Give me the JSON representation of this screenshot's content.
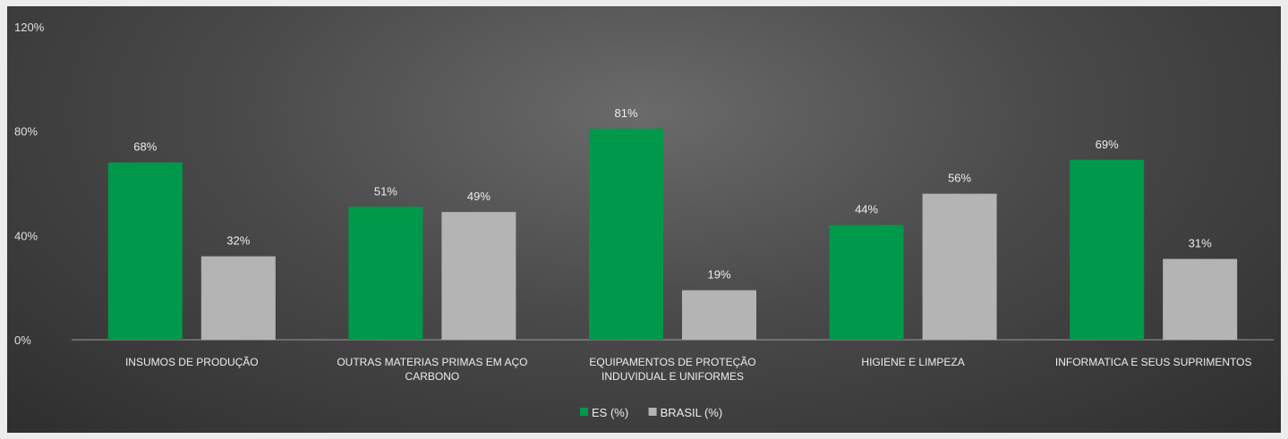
{
  "chart_data": {
    "type": "bar",
    "categories": [
      [
        "INSUMOS DE PRODUÇÃO"
      ],
      [
        "OUTRAS MATERIAS PRIMAS EM AÇO",
        "CARBONO"
      ],
      [
        "EQUIPAMENTOS DE PROTEÇÃO",
        "INDUVIDUAL E UNIFORMES"
      ],
      [
        "HIGIENE E LIMPEZA"
      ],
      [
        "INFORMATICA E SEUS SUPRIMENTOS"
      ]
    ],
    "series": [
      {
        "name": "ES (%)",
        "values": [
          68,
          51,
          81,
          44,
          69
        ],
        "labels": [
          "68%",
          "51%",
          "81%",
          "44%",
          "69%"
        ],
        "color": "#00984a"
      },
      {
        "name": "BRASIL (%)",
        "values": [
          32,
          49,
          19,
          56,
          31
        ],
        "labels": [
          "32%",
          "49%",
          "19%",
          "56%",
          "31%"
        ],
        "color": "#b4b4b4"
      }
    ],
    "yticks": [
      0,
      40,
      80,
      120
    ],
    "ytick_labels": [
      "0%",
      "40%",
      "80%",
      "120%"
    ],
    "ylim": [
      0,
      120
    ],
    "grid": false,
    "legend_position": "bottom",
    "title": "",
    "xlabel": "",
    "ylabel": ""
  }
}
